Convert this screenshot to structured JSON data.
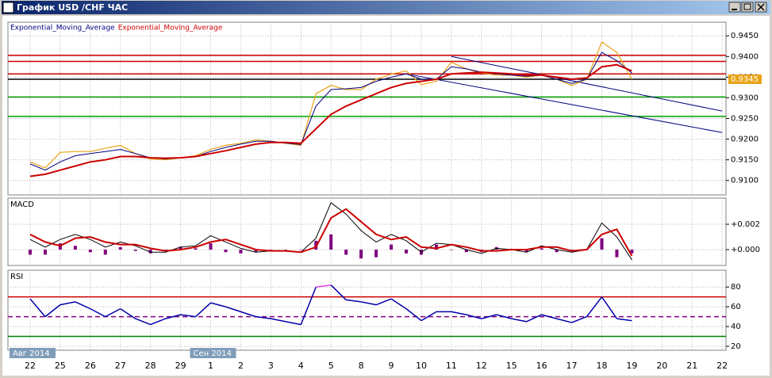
{
  "window_title": "График USD /CHF ЧАС",
  "chart_data": [
    {
      "type": "line",
      "grid": true,
      "categories": [
        "22",
        null,
        "25",
        null,
        "26",
        null,
        "27",
        null,
        "28",
        null,
        "29",
        null,
        "1",
        null,
        "2",
        null,
        "3",
        null,
        "4",
        null,
        "5",
        null,
        "8",
        null,
        "9",
        null,
        "10",
        null,
        "11",
        null,
        "12",
        null,
        "15",
        null,
        "16",
        null,
        "17",
        null,
        "18",
        null,
        "19",
        null,
        "20",
        null,
        "21",
        null,
        "22",
        null
      ],
      "period_labels": [
        {
          "index": 0,
          "label": "Авг 2014"
        },
        {
          "index": 12,
          "label": "Сен 2014"
        }
      ],
      "ylim": [
        0.9065,
        0.9483
      ],
      "yticks": [
        {
          "value": 0.91,
          "label": "0.9100"
        },
        {
          "value": 0.915,
          "label": "0.9150"
        },
        {
          "value": 0.92,
          "label": "0.9200"
        },
        {
          "value": 0.925,
          "label": "0.9250"
        },
        {
          "value": 0.93,
          "label": "0.9300"
        },
        {
          "value": 0.935,
          "label": "0.9350"
        },
        {
          "value": 0.94,
          "label": "0.9400"
        },
        {
          "value": 0.945,
          "label": "0.9450"
        }
      ],
      "series": [
        {
          "color": "#e8a317",
          "values": [
            0.9145,
            0.913,
            0.9168,
            0.917,
            0.917,
            0.9178,
            0.9185,
            0.9165,
            0.9152,
            0.915,
            0.9155,
            0.916,
            0.9175,
            0.9185,
            0.919,
            0.9198,
            0.9195,
            0.919,
            0.9185,
            0.931,
            0.933,
            0.932,
            0.932,
            0.9345,
            0.9357,
            0.9365,
            0.9332,
            0.934,
            0.9386,
            0.937,
            0.936,
            0.9355,
            0.9355,
            0.935,
            0.9355,
            0.9345,
            0.933,
            0.9345,
            0.9435,
            0.941,
            0.9345,
            null,
            null,
            null,
            null,
            null,
            null,
            null
          ]
        },
        {
          "name": "Exponential_Moving_Average",
          "color": "#000080",
          "values": [
            0.914,
            0.9125,
            0.9145,
            0.916,
            0.9165,
            0.917,
            0.9175,
            0.9165,
            0.9155,
            0.9152,
            0.9155,
            0.9158,
            0.917,
            0.918,
            0.9188,
            0.9195,
            0.9195,
            0.919,
            0.9187,
            0.928,
            0.932,
            0.9322,
            0.9325,
            0.934,
            0.935,
            0.9358,
            0.9345,
            0.9345,
            0.9375,
            0.937,
            0.9362,
            0.9358,
            0.9355,
            0.9352,
            0.9355,
            0.9345,
            0.9335,
            0.9345,
            0.941,
            0.939,
            0.936,
            null,
            null,
            null,
            null,
            null,
            null,
            null
          ]
        },
        {
          "name": "Exponential_Moving_Average",
          "color": "#cc0000",
          "values": [
            0.911,
            0.9115,
            0.9125,
            0.9135,
            0.9145,
            0.915,
            0.9158,
            0.9158,
            0.9155,
            0.9154,
            0.9155,
            0.9158,
            0.9165,
            0.9172,
            0.918,
            0.9188,
            0.9192,
            0.9192,
            0.919,
            0.9225,
            0.926,
            0.928,
            0.9295,
            0.931,
            0.9325,
            0.9335,
            0.934,
            0.9345,
            0.9358,
            0.936,
            0.9362,
            0.936,
            0.9358,
            0.9355,
            0.9355,
            0.935,
            0.9345,
            0.9348,
            0.9375,
            0.938,
            0.9365,
            null,
            null,
            null,
            null,
            null,
            null,
            null
          ]
        }
      ],
      "levels": [
        {
          "value": 0.9403,
          "color": "#cc0000"
        },
        {
          "value": 0.9388,
          "color": "#cc0000"
        },
        {
          "value": 0.9358,
          "color": "#cc0000"
        },
        {
          "value": 0.9345,
          "color": "#000000"
        },
        {
          "value": 0.9302,
          "color": "#00a000"
        },
        {
          "value": 0.9255,
          "color": "#00a000"
        }
      ],
      "trendlines": [
        {
          "color": "#000080",
          "x": [
            28,
            46
          ],
          "y": [
            0.94,
            0.9268
          ]
        },
        {
          "color": "#000080",
          "x": [
            25,
            46
          ],
          "y": [
            0.9358,
            0.9216
          ]
        }
      ],
      "last_price": {
        "value": 0.9345,
        "label": "0.9345",
        "color": "#e8a317"
      }
    },
    {
      "type": "macd",
      "title": "MACD",
      "grid": true,
      "ylim": [
        -0.00125,
        0.00406
      ],
      "yticks": [
        {
          "value": 0,
          "label": "+0.000"
        },
        {
          "value": 0.002,
          "label": "+0.002"
        }
      ],
      "series": [
        {
          "color": "#000000",
          "values": [
            0.0008,
            0.0002,
            0.0008,
            0.0012,
            0.0008,
            0.0002,
            0.0006,
            0.0003,
            -0.0002,
            -0.0002,
            0.0002,
            0.0003,
            0.0011,
            0.0006,
            0.0001,
            -0.0002,
            -0.0001,
            -0.0001,
            -0.0002,
            0.0009,
            0.0037,
            0.0028,
            0.0015,
            0.0006,
            0.0012,
            0.0007,
            -0.0002,
            0.0005,
            0.0004,
            0,
            -0.0003,
            0.0001,
            0,
            -0.0002,
            0.0003,
            0,
            -0.0002,
            0,
            0.0021,
            0.001,
            -0.0008,
            null,
            null,
            null,
            null,
            null,
            null,
            null
          ]
        },
        {
          "color": "#cc0000",
          "values": [
            0.0012,
            0.0006,
            0.0003,
            0.0009,
            0.001,
            0.0006,
            0.0004,
            0.0004,
            0.0001,
            -0.0001,
            0,
            0.0002,
            0.0006,
            0.0008,
            0.0004,
            0,
            -0.0001,
            -0.0001,
            -0.0002,
            0.0002,
            0.0025,
            0.0032,
            0.0022,
            0.0012,
            0.0008,
            0.001,
            0.0002,
            0.0001,
            0.0004,
            0.0002,
            -0.0001,
            -0.0001,
            0,
            0,
            0.0002,
            0.0002,
            -0.0001,
            0,
            0.0012,
            0.0016,
            -0.0005,
            null,
            null,
            null,
            null,
            null,
            null,
            null
          ]
        }
      ],
      "histogram": {
        "color": "#800080",
        "values": [
          -0.0004,
          -0.0004,
          0.0005,
          0.0003,
          -0.0002,
          -0.0004,
          0.0002,
          -0.0001,
          -0.0003,
          -0.0001,
          0.0002,
          0.0001,
          0.0005,
          -0.0002,
          -0.0003,
          -0.0002,
          0,
          0,
          0,
          0.0007,
          0.0012,
          -0.0004,
          -0.0007,
          -0.0006,
          0.0004,
          -0.0003,
          -0.0004,
          0.0004,
          0,
          -0.0002,
          -0.0002,
          0.0002,
          0,
          -0.0002,
          0.0001,
          -0.0002,
          -0.0001,
          0,
          0.0009,
          -0.0006,
          -0.0003,
          null,
          null,
          null,
          null,
          null,
          null,
          null
        ]
      }
    },
    {
      "type": "rsi",
      "title": "RSI",
      "grid": true,
      "ylim": [
        16,
        97
      ],
      "yticks": [
        20,
        40,
        60,
        80
      ],
      "overbought": 70,
      "overbought_color": "#e040e0",
      "series": [
        {
          "color": "#0000aa",
          "values": [
            68,
            50,
            62,
            65,
            58,
            50,
            58,
            48,
            42,
            48,
            52,
            50,
            64,
            60,
            55,
            50,
            48,
            45,
            42,
            80,
            82,
            67,
            65,
            62,
            68,
            58,
            46,
            55,
            55,
            52,
            48,
            52,
            48,
            45,
            52,
            48,
            44,
            50,
            70,
            48,
            46,
            null,
            null,
            null,
            null,
            null,
            null,
            null
          ]
        }
      ],
      "levels": [
        {
          "value": 70,
          "color": "#cc0000",
          "dash": false
        },
        {
          "value": 50,
          "color": "#800080",
          "dash": true
        },
        {
          "value": 30,
          "color": "#008000",
          "dash": false
        }
      ]
    }
  ]
}
